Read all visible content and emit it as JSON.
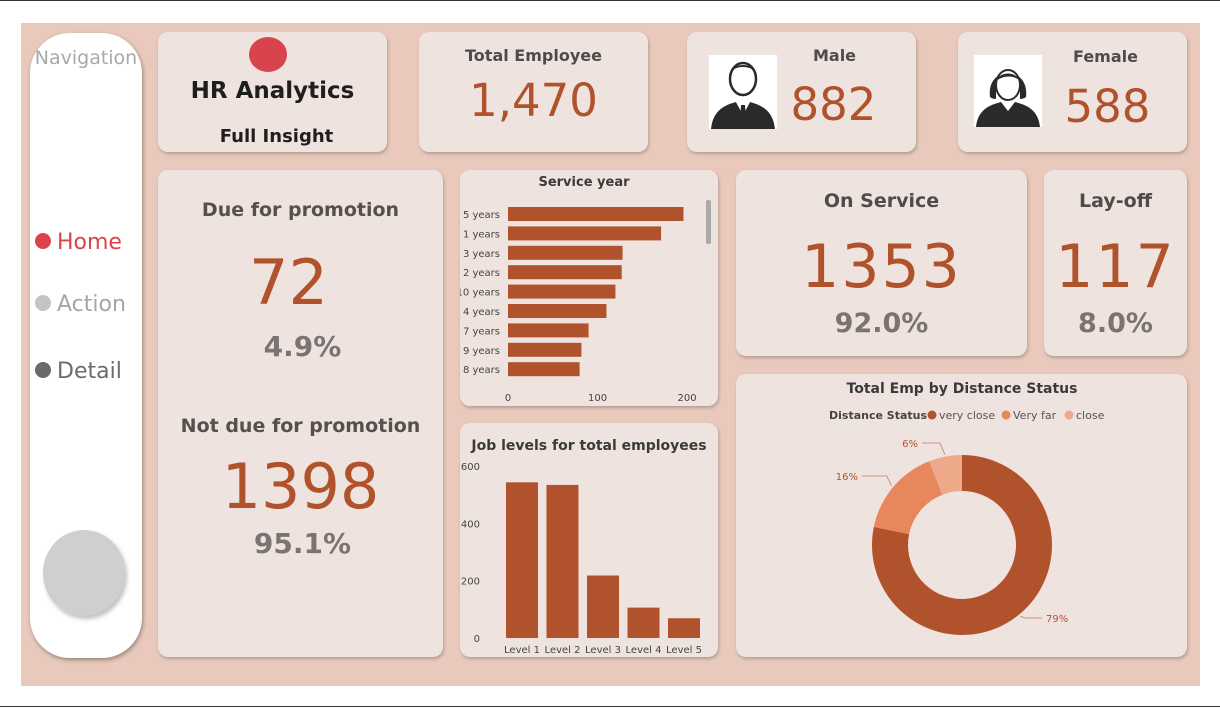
{
  "navigation": {
    "title": "Navigation",
    "items": [
      {
        "label": "Home",
        "color": "#d9434c",
        "text_color": "#d9434c"
      },
      {
        "label": "Action",
        "color": "#c4c4c4",
        "text_color": "#a6a6a6"
      },
      {
        "label": "Detail",
        "color": "#6b6b6b",
        "text_color": "#6b6b6b"
      }
    ]
  },
  "brand": {
    "title": "HR Analytics",
    "subtitle": "Full Insight",
    "dot_color": "#d9434c"
  },
  "kpis": {
    "total_employee": {
      "label": "Total Employee",
      "value": "1,470"
    },
    "male": {
      "label": "Male",
      "value": "882"
    },
    "female": {
      "label": "Female",
      "value": "588"
    },
    "due_promotion": {
      "label": "Due for promotion",
      "value": "72",
      "pct": "4.9%"
    },
    "not_due_promotion": {
      "label": "Not due for promotion",
      "value": "1398",
      "pct": "95.1%"
    },
    "on_service": {
      "label": "On Service",
      "value": "1353",
      "pct": "92.0%"
    },
    "layoff": {
      "label": "Lay-off",
      "value": "117",
      "pct": "8.0%"
    }
  },
  "colors": {
    "accent": "#b0532c",
    "card": "#efe3df",
    "background": "#e8c9bc",
    "very_far": "#e8875c",
    "close": "#eda98a"
  },
  "chart_data": [
    {
      "type": "bar",
      "orientation": "horizontal",
      "title": "Service year",
      "categories": [
        "5 years",
        "1 years",
        "3 years",
        "2 years",
        "10 years",
        "4 years",
        "7 years",
        "9 years",
        "8 years"
      ],
      "values": [
        196,
        171,
        128,
        127,
        120,
        110,
        90,
        82,
        80
      ],
      "xlim": [
        0,
        210
      ],
      "xticks": [
        "0",
        "100",
        "200"
      ],
      "xtick_values": [
        0,
        100,
        200
      ]
    },
    {
      "type": "bar",
      "title": "Job levels for total employees",
      "categories": [
        "Level 1",
        "Level 2",
        "Level 3",
        "Level 4",
        "Level 5"
      ],
      "values": [
        543,
        534,
        218,
        106,
        69
      ],
      "ylim": [
        0,
        600
      ],
      "yticks": [
        "0",
        "200",
        "400",
        "600"
      ],
      "ytick_values": [
        0,
        200,
        400,
        600
      ]
    },
    {
      "type": "pie",
      "subtype": "donut",
      "title": "Total Emp by Distance Status",
      "legend_title": "Distance Status",
      "legend_position": "top",
      "labels": [
        "very close",
        "Very far",
        "close"
      ],
      "values": [
        79,
        16,
        6
      ],
      "data_labels": [
        "79%",
        "16%",
        "6%"
      ],
      "colors": [
        "#b0532c",
        "#e8875c",
        "#eda98a"
      ]
    }
  ]
}
